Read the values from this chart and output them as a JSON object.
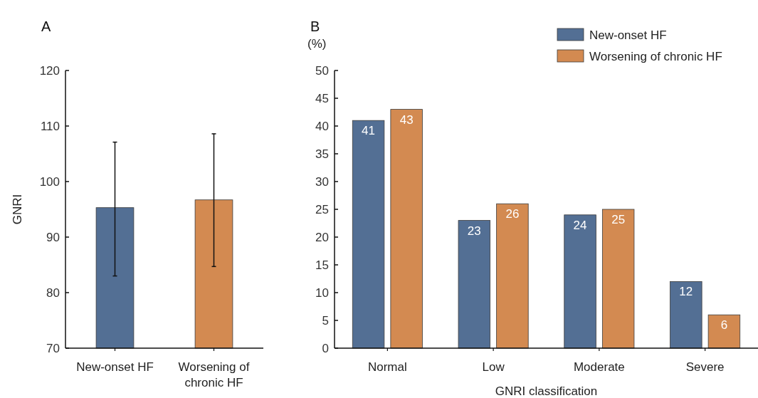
{
  "chart_data": [
    {
      "type": "bar",
      "title": "A",
      "ylabel": "GNRI",
      "categories": [
        "New-onset HF",
        "Worsening of chronic HF"
      ],
      "values": [
        95.3,
        96.7
      ],
      "colors": [
        "#536f94",
        "#d38a51"
      ],
      "errors": [
        [
          83.0,
          107.1
        ],
        [
          84.7,
          108.6
        ]
      ],
      "ylim": [
        70,
        120
      ],
      "yticks": [
        70,
        80,
        90,
        100,
        110,
        120
      ],
      "grid": false,
      "legend": false
    },
    {
      "type": "bar",
      "title": "B",
      "ylabel": "(%)",
      "xlabel": "GNRI classification",
      "categories": [
        "Normal",
        "Low",
        "Moderate",
        "Severe"
      ],
      "series": [
        {
          "name": "New-onset HF",
          "color": "#536f94",
          "values": [
            41,
            23,
            24,
            12
          ]
        },
        {
          "name": "Worsening of chronic HF",
          "color": "#d38a51",
          "values": [
            43,
            26,
            25,
            6
          ]
        }
      ],
      "ylim": [
        0,
        50
      ],
      "yticks": [
        0,
        5,
        10,
        15,
        20,
        25,
        30,
        35,
        40,
        45,
        50
      ],
      "data_labels": true,
      "grid": false,
      "legend": "top right"
    }
  ]
}
